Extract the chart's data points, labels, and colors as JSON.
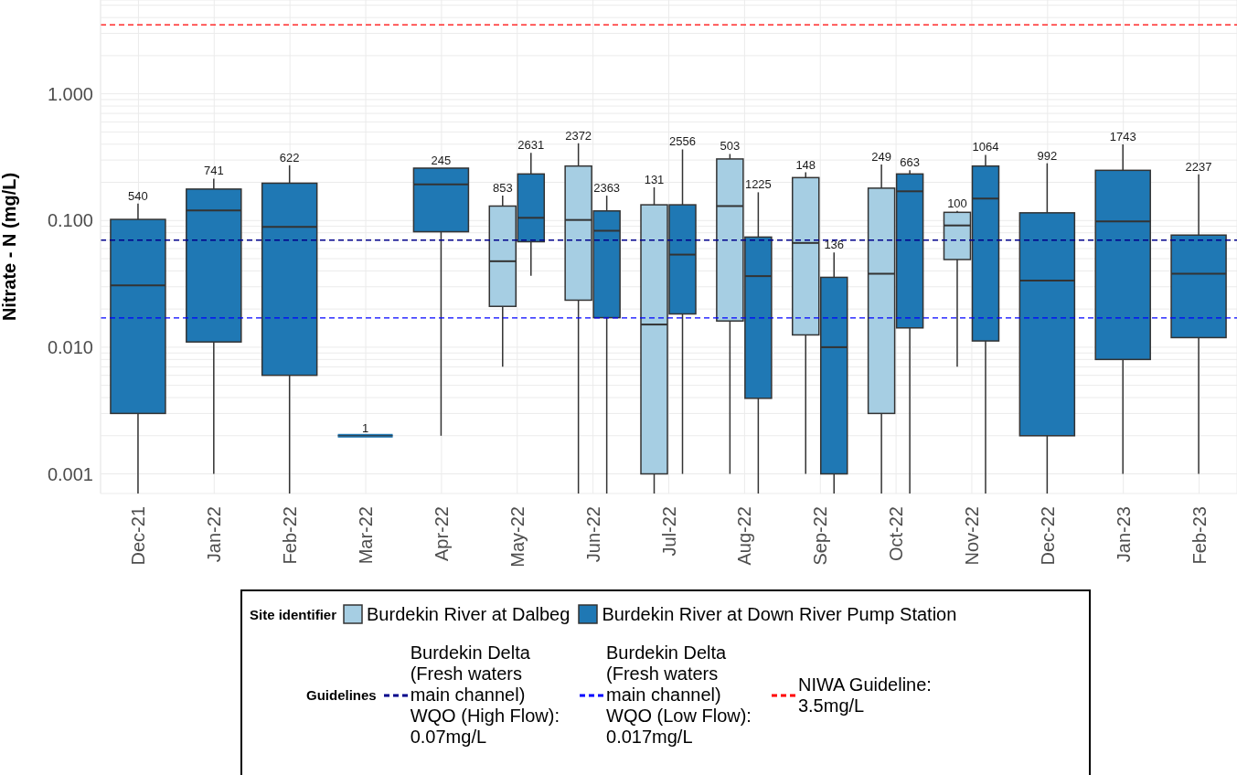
{
  "chart_data": {
    "type": "box",
    "ylabel": "Nitrate - N (mg/L)",
    "legend_title": "Site identifier",
    "categories": [
      "Dec-21",
      "Jan-22",
      "Feb-22",
      "Mar-22",
      "Apr-22",
      "May-22",
      "Jun-22",
      "Jul-22",
      "Aug-22",
      "Sep-22",
      "Oct-22",
      "Nov-22",
      "Dec-22",
      "Jan-23",
      "Feb-23"
    ],
    "series": [
      {
        "name": "Burdekin River at Dalbeg",
        "color": "#a6cee3",
        "boxes": [
          null,
          null,
          null,
          null,
          null,
          {
            "low": 0.007,
            "q1": 0.021,
            "median": 0.0477,
            "q3": 0.13,
            "high": 0.157
          },
          {
            "low": 0.0007,
            "q1": 0.0235,
            "median": 0.101,
            "q3": 0.269,
            "high": 0.407
          },
          {
            "low": 0.0007,
            "q1": 0.001,
            "median": 0.0151,
            "q3": 0.133,
            "high": 0.183
          },
          {
            "low": 0.001,
            "q1": 0.0161,
            "median": 0.13,
            "q3": 0.306,
            "high": 0.335
          },
          {
            "low": 0.001,
            "q1": 0.0125,
            "median": 0.0665,
            "q3": 0.218,
            "high": 0.24
          },
          {
            "low": 0.0007,
            "q1": 0.003,
            "median": 0.038,
            "q3": 0.18,
            "high": 0.277
          },
          {
            "low": 0.007,
            "q1": 0.0492,
            "median": 0.0914,
            "q3": 0.116,
            "high": 0.119
          },
          null,
          null,
          null
        ],
        "value_labels": [
          null,
          null,
          null,
          null,
          null,
          "853",
          "2372",
          "131",
          "503",
          "148",
          "249",
          "100",
          null,
          null,
          null
        ]
      },
      {
        "name": "Burdekin River at Down River Pump Station",
        "color": "#1f78b4",
        "boxes": [
          {
            "low": 0.0007,
            "q1": 0.003,
            "median": 0.0308,
            "q3": 0.102,
            "high": 0.136
          },
          {
            "low": 0.001,
            "q1": 0.011,
            "median": 0.12,
            "q3": 0.177,
            "high": 0.214
          },
          {
            "low": 0.0007,
            "q1": 0.006,
            "median": 0.089,
            "q3": 0.197,
            "high": 0.273
          },
          {
            "low": 0.002,
            "q1": 0.002,
            "median": 0.002,
            "q3": 0.002,
            "high": 0.002
          },
          {
            "low": 0.002,
            "q1": 0.0815,
            "median": 0.193,
            "q3": 0.259,
            "high": 0.259
          },
          {
            "low": 0.0366,
            "q1": 0.068,
            "median": 0.105,
            "q3": 0.233,
            "high": 0.342
          },
          {
            "low": 0.0007,
            "q1": 0.0171,
            "median": 0.083,
            "q3": 0.119,
            "high": 0.157
          },
          {
            "low": 0.001,
            "q1": 0.0183,
            "median": 0.0538,
            "q3": 0.133,
            "high": 0.364
          },
          {
            "low": 0.0007,
            "q1": 0.00395,
            "median": 0.0364,
            "q3": 0.074,
            "high": 0.167
          },
          {
            "low": 0.0007,
            "q1": 0.001,
            "median": 0.01,
            "q3": 0.0356,
            "high": 0.056
          },
          {
            "low": 0.0007,
            "q1": 0.0142,
            "median": 0.17,
            "q3": 0.233,
            "high": 0.249
          },
          {
            "low": 0.0007,
            "q1": 0.0112,
            "median": 0.149,
            "q3": 0.269,
            "high": 0.33
          },
          {
            "low": 0.0007,
            "q1": 0.002,
            "median": 0.0335,
            "q3": 0.115,
            "high": 0.283
          },
          {
            "low": 0.001,
            "q1": 0.008,
            "median": 0.0985,
            "q3": 0.249,
            "high": 0.398
          },
          {
            "low": 0.001,
            "q1": 0.0119,
            "median": 0.038,
            "q3": 0.0767,
            "high": 0.231
          }
        ],
        "value_labels": [
          "540",
          "741",
          "622",
          "1",
          "245",
          "2631",
          "2363",
          "2556",
          "1225",
          "136",
          "663",
          "1064",
          "992",
          "1743",
          "2237"
        ]
      }
    ],
    "ylim": [
      0.0007,
      5.5
    ],
    "log": "y",
    "yticks": [
      {
        "value": 0.001,
        "label": "0.001"
      },
      {
        "value": 0.002,
        "label": null
      },
      {
        "value": 0.003,
        "label": null
      },
      {
        "value": 0.004,
        "label": null
      },
      {
        "value": 0.005,
        "label": null
      },
      {
        "value": 0.006,
        "label": null
      },
      {
        "value": 0.007,
        "label": null
      },
      {
        "value": 0.008,
        "label": null
      },
      {
        "value": 0.009,
        "label": null
      },
      {
        "value": 0.01,
        "label": "0.010"
      },
      {
        "value": 0.02,
        "label": null
      },
      {
        "value": 0.03,
        "label": null
      },
      {
        "value": 0.04,
        "label": null
      },
      {
        "value": 0.05,
        "label": null
      },
      {
        "value": 0.06,
        "label": null
      },
      {
        "value": 0.07,
        "label": null
      },
      {
        "value": 0.08,
        "label": null
      },
      {
        "value": 0.09,
        "label": null
      },
      {
        "value": 0.1,
        "label": "0.100"
      },
      {
        "value": 0.2,
        "label": null
      },
      {
        "value": 0.3,
        "label": null
      },
      {
        "value": 0.4,
        "label": null
      },
      {
        "value": 0.5,
        "label": null
      },
      {
        "value": 0.6,
        "label": null
      },
      {
        "value": 0.7,
        "label": null
      },
      {
        "value": 0.8,
        "label": null
      },
      {
        "value": 0.9,
        "label": null
      },
      {
        "value": 1,
        "label": "1.000"
      },
      {
        "value": 2,
        "label": null
      },
      {
        "value": 3,
        "label": null
      },
      {
        "value": 4,
        "label": null
      },
      {
        "value": 5,
        "label": null
      }
    ],
    "ref_lines": [
      {
        "axis": "y",
        "value": 0.07,
        "label": "Burdekin Delta (Fresh waters main channel) WQO (High Flow): 0.07mg/L",
        "color": "#00008b",
        "line_style": "dashed"
      },
      {
        "axis": "y",
        "value": 0.017,
        "label": "Burdekin Delta (Fresh waters main channel) WQO (Low Flow): 0.017mg/L",
        "color": "#0000ff",
        "line_style": "dashed"
      },
      {
        "axis": "y",
        "value": 3.5,
        "label": "NIWA Guideline: 3.5mg/L",
        "color": "#ff0000",
        "line_style": "dashed"
      }
    ],
    "annotations": [
      "Guidelines"
    ],
    "grid": true,
    "legend": "bottom"
  }
}
